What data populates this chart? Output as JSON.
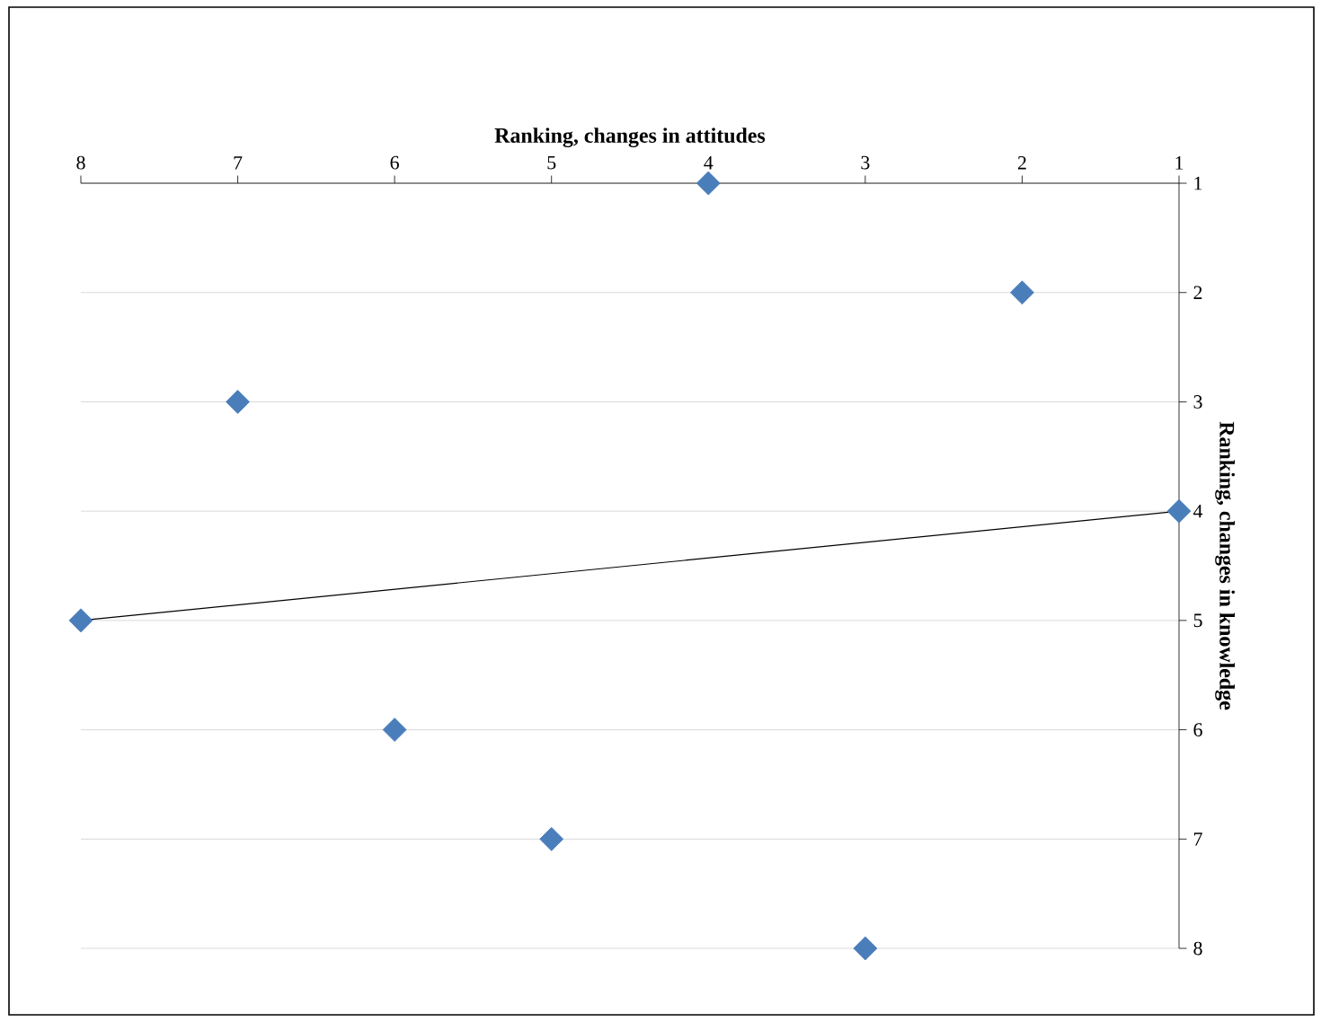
{
  "chart_data": {
    "type": "scatter",
    "xlabel": "Ranking, changes in attitudes",
    "ylabel": "Ranking, changes in knowledge",
    "x": [
      4,
      2,
      7,
      1,
      8,
      6,
      5,
      3
    ],
    "series": [
      {
        "color": "#4a7ebb",
        "values": [
          1,
          2,
          3,
          4,
          5,
          6,
          7,
          8
        ]
      },
      {
        "type": "line",
        "color": "#000000",
        "x": [
          8,
          1
        ],
        "values": [
          5,
          4
        ],
        "marker": "none"
      }
    ],
    "xlim": [
      8,
      1
    ],
    "ylim": [
      8,
      1
    ],
    "xticks": [
      8,
      7,
      6,
      5,
      4,
      3,
      2,
      1
    ],
    "yticks": [
      1,
      2,
      3,
      4,
      5,
      6,
      7,
      8
    ],
    "grid": "y",
    "marker": "diamond"
  }
}
